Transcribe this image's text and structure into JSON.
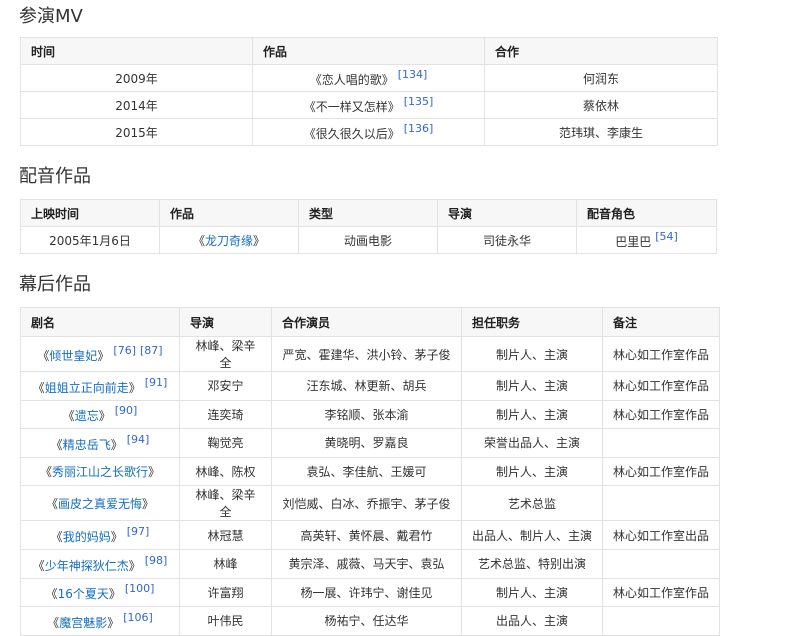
{
  "sections": [
    {
      "title": "参演MV",
      "headers": [
        "时间",
        "作品",
        "合作"
      ],
      "rows": [
        [
          {
            "t": "2009年"
          },
          {
            "t": "《恋人唱的歌》",
            "refs": [
              "[134]"
            ]
          },
          {
            "t": "何润东"
          }
        ],
        [
          {
            "t": "2014年"
          },
          {
            "t": "《不一样又怎样》",
            "refs": [
              "[135]"
            ]
          },
          {
            "t": "蔡依林"
          }
        ],
        [
          {
            "t": "2015年"
          },
          {
            "t": "《很久很久以后》",
            "refs": [
              "[136]"
            ]
          },
          {
            "t": "范玮琪、李康生"
          }
        ]
      ]
    },
    {
      "title": "配音作品",
      "headers": [
        "上映时间",
        "作品",
        "类型",
        "导演",
        "配音角色"
      ],
      "rows": [
        [
          {
            "t": "2005年1月6日"
          },
          {
            "link": "龙刀奇缘"
          },
          {
            "t": "动画电影"
          },
          {
            "t": "司徒永华"
          },
          {
            "t": "巴里巴",
            "refs": [
              "[54]"
            ]
          }
        ]
      ]
    },
    {
      "title": "幕后作品",
      "headers": [
        "剧名",
        "导演",
        "合作演员",
        "担任职务",
        "备注"
      ],
      "rows": [
        [
          {
            "link": "倾世皇妃",
            "refs": [
              "[76]",
              "[87]"
            ]
          },
          {
            "t": "林峰、梁辛全"
          },
          {
            "t": "严宽、霍建华、洪小铃、茅子俊"
          },
          {
            "t": "制片人、主演"
          },
          {
            "t": "林心如工作室作品"
          }
        ],
        [
          {
            "link": "姐姐立正向前走",
            "refs": [
              "[91]"
            ]
          },
          {
            "t": "邓安宁"
          },
          {
            "t": "汪东城、林更新、胡兵"
          },
          {
            "t": "制片人、主演"
          },
          {
            "t": "林心如工作室作品"
          }
        ],
        [
          {
            "link": "遗忘",
            "refs": [
              "[90]"
            ]
          },
          {
            "t": "连奕琦"
          },
          {
            "t": "李铭顺、张本渝"
          },
          {
            "t": "制片人、主演"
          },
          {
            "t": "林心如工作室作品"
          }
        ],
        [
          {
            "link": "精忠岳飞",
            "refs": [
              "[94]"
            ]
          },
          {
            "t": "鞠觉亮"
          },
          {
            "t": "黄晓明、罗嘉良"
          },
          {
            "t": "荣誉出品人、主演"
          },
          {
            "t": ""
          }
        ],
        [
          {
            "link": "秀丽江山之长歌行"
          },
          {
            "t": "林峰、陈权"
          },
          {
            "t": "袁弘、李佳航、王媛可"
          },
          {
            "t": "制片人、主演"
          },
          {
            "t": "林心如工作室作品"
          }
        ],
        [
          {
            "link": "画皮之真爱无悔"
          },
          {
            "t": "林峰、梁辛全"
          },
          {
            "t": "刘恺威、白冰、乔振宇、茅子俊"
          },
          {
            "t": "艺术总监"
          },
          {
            "t": ""
          }
        ],
        [
          {
            "link": "我的妈妈",
            "refs": [
              "[97]"
            ]
          },
          {
            "t": "林冠慧"
          },
          {
            "t": "高英轩、黄怀晨、戴君竹"
          },
          {
            "t": "出品人、制片人、主演"
          },
          {
            "t": "林心如工作室出品"
          }
        ],
        [
          {
            "link": "少年神探狄仁杰",
            "refs": [
              "[98]"
            ]
          },
          {
            "t": "林峰"
          },
          {
            "t": "黄宗泽、戚薇、马天宇、袁弘"
          },
          {
            "t": "艺术总监、特别出演"
          },
          {
            "t": ""
          }
        ],
        [
          {
            "link": "16个夏天",
            "refs": [
              "[100]"
            ]
          },
          {
            "t": "许富翔"
          },
          {
            "t": "杨一展、许玮宁、谢佳见"
          },
          {
            "t": "制片人、主演"
          },
          {
            "t": "林心如工作室作品"
          }
        ],
        [
          {
            "link": "魔宫魅影",
            "refs": [
              "[106]"
            ]
          },
          {
            "t": "叶伟民"
          },
          {
            "t": "杨祐宁、任达华"
          },
          {
            "t": "出品人、主演"
          },
          {
            "t": ""
          }
        ]
      ]
    }
  ],
  "quote_open": "《",
  "quote_close": "》",
  "colors": {
    "link": "#136ec2",
    "ref": "#3366cc",
    "header_bg": "#f7f7f7",
    "border": "#e2e2e2"
  }
}
